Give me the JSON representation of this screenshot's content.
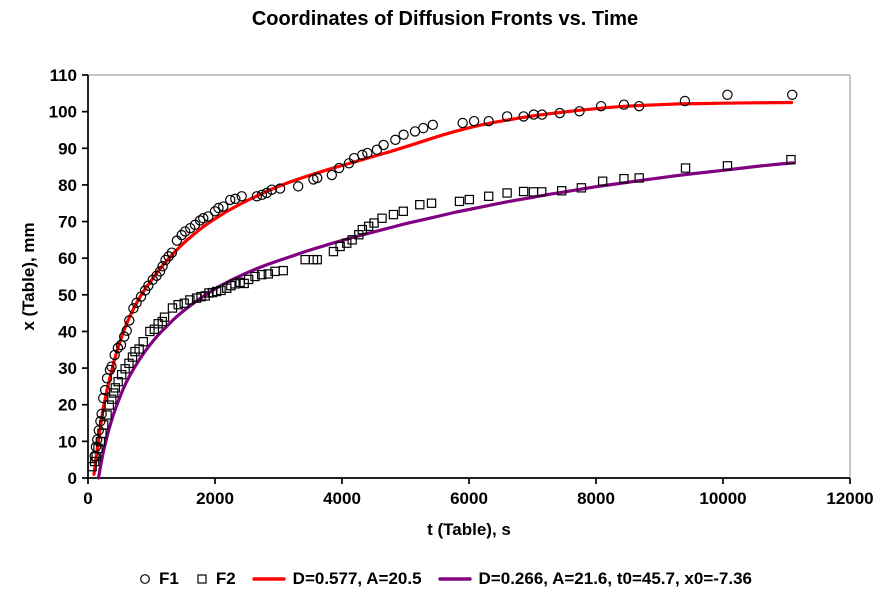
{
  "title": "Coordinates of Diffusion Fronts vs. Time",
  "colors": {
    "fit1_line": "#ff0000",
    "fit2_line": "#800080",
    "marker_stroke": "#000000",
    "axis": "#000000",
    "frame": "#8c8c8c",
    "background": "#ffffff"
  },
  "legend": {
    "items": [
      {
        "label": "F1",
        "marker": "circle-outline"
      },
      {
        "label": "F2",
        "marker": "square-outline"
      },
      {
        "label": "D=0.577, A=20.5",
        "marker": "red-line"
      },
      {
        "label": "D=0.266, A=21.6, t0=45.7, x0=-7.36",
        "marker": "purple-line"
      }
    ]
  },
  "chart_data": {
    "type": "scatter",
    "title": "Coordinates of Diffusion Fronts vs. Time",
    "xlabel": "t (Table), s",
    "ylabel": "x (Table), mm",
    "xlim": [
      0,
      12000
    ],
    "ylim": [
      0,
      110
    ],
    "x_ticks": [
      0,
      2000,
      4000,
      6000,
      8000,
      10000,
      12000
    ],
    "y_ticks": [
      0,
      10,
      20,
      30,
      40,
      50,
      60,
      70,
      80,
      90,
      100,
      110
    ],
    "grid": false,
    "legend_position": "bottom",
    "series": [
      {
        "name": "F1",
        "type": "scatter",
        "marker": "circle",
        "color": "#000000",
        "points": [
          [
            105,
            6
          ],
          [
            125,
            8.5
          ],
          [
            145,
            10.5
          ],
          [
            170,
            13
          ],
          [
            195,
            15.5
          ],
          [
            215,
            17.5
          ],
          [
            240,
            21.8
          ],
          [
            270,
            24
          ],
          [
            300,
            27.2
          ],
          [
            345,
            29.5
          ],
          [
            370,
            30.4
          ],
          [
            420,
            33.6
          ],
          [
            470,
            35.5
          ],
          [
            520,
            36.3
          ],
          [
            570,
            38.6
          ],
          [
            610,
            40.2
          ],
          [
            650,
            43
          ],
          [
            715,
            46.3
          ],
          [
            765,
            47.8
          ],
          [
            835,
            49.5
          ],
          [
            900,
            51.2
          ],
          [
            950,
            52.5
          ],
          [
            1020,
            54.1
          ],
          [
            1080,
            55.2
          ],
          [
            1135,
            56.4
          ],
          [
            1175,
            57.8
          ],
          [
            1220,
            59.5
          ],
          [
            1270,
            60.5
          ],
          [
            1320,
            61.5
          ],
          [
            1400,
            64.8
          ],
          [
            1475,
            66.3
          ],
          [
            1530,
            67.3
          ],
          [
            1610,
            68.2
          ],
          [
            1685,
            69.1
          ],
          [
            1765,
            70.3
          ],
          [
            1815,
            70.9
          ],
          [
            1895,
            71.4
          ],
          [
            2000,
            72.8
          ],
          [
            2055,
            73.7
          ],
          [
            2130,
            74.1
          ],
          [
            2240,
            75.9
          ],
          [
            2320,
            76.2
          ],
          [
            2420,
            76.9
          ],
          [
            2660,
            76.9
          ],
          [
            2740,
            77.3
          ],
          [
            2815,
            77.8
          ],
          [
            2895,
            78.7
          ],
          [
            3025,
            79
          ],
          [
            3310,
            79.6
          ],
          [
            3550,
            81.5
          ],
          [
            3610,
            81.9
          ],
          [
            3840,
            82.7
          ],
          [
            3955,
            84.6
          ],
          [
            4110,
            85.9
          ],
          [
            4190,
            87.3
          ],
          [
            4320,
            88.2
          ],
          [
            4400,
            88.7
          ],
          [
            4550,
            89.6
          ],
          [
            4655,
            90.9
          ],
          [
            4840,
            92.3
          ],
          [
            4970,
            93.7
          ],
          [
            5150,
            94.6
          ],
          [
            5280,
            95.5
          ],
          [
            5430,
            96.4
          ],
          [
            5900,
            96.9
          ],
          [
            6080,
            97.4
          ],
          [
            6310,
            97.4
          ],
          [
            6600,
            98.7
          ],
          [
            6860,
            98.7
          ],
          [
            7020,
            99.2
          ],
          [
            7150,
            99.2
          ],
          [
            7430,
            99.6
          ],
          [
            7740,
            100.1
          ],
          [
            8080,
            101.5
          ],
          [
            8440,
            101.9
          ],
          [
            8680,
            101.5
          ],
          [
            9400,
            102.9
          ],
          [
            10070,
            104.6
          ],
          [
            11090,
            104.6
          ]
        ]
      },
      {
        "name": "F2",
        "type": "scatter",
        "marker": "square",
        "color": "#000000",
        "points": [
          [
            65,
            3.1
          ],
          [
            105,
            4.5
          ],
          [
            128,
            5.8
          ],
          [
            157,
            8.1
          ],
          [
            195,
            9.9
          ],
          [
            220,
            12.2
          ],
          [
            247,
            14.5
          ],
          [
            300,
            17.2
          ],
          [
            335,
            19.9
          ],
          [
            375,
            21.5
          ],
          [
            405,
            23.2
          ],
          [
            430,
            24.6
          ],
          [
            475,
            26.3
          ],
          [
            530,
            28.2
          ],
          [
            585,
            29.8
          ],
          [
            645,
            31.3
          ],
          [
            700,
            33
          ],
          [
            740,
            34.5
          ],
          [
            805,
            35.2
          ],
          [
            870,
            37.2
          ],
          [
            975,
            40
          ],
          [
            1045,
            40.6
          ],
          [
            1105,
            42.1
          ],
          [
            1170,
            42.7
          ],
          [
            1205,
            43.9
          ],
          [
            1330,
            46.4
          ],
          [
            1420,
            47.3
          ],
          [
            1515,
            47.7
          ],
          [
            1605,
            48.6
          ],
          [
            1710,
            49.1
          ],
          [
            1780,
            49.5
          ],
          [
            1845,
            49.7
          ],
          [
            1905,
            50.5
          ],
          [
            1960,
            50.6
          ],
          [
            2025,
            50.9
          ],
          [
            2095,
            51.2
          ],
          [
            2185,
            51.8
          ],
          [
            2250,
            52.5
          ],
          [
            2315,
            53
          ],
          [
            2395,
            53.4
          ],
          [
            2460,
            53.1
          ],
          [
            2530,
            54.2
          ],
          [
            2630,
            55
          ],
          [
            2735,
            55.5
          ],
          [
            2840,
            55.7
          ],
          [
            2945,
            56.4
          ],
          [
            3075,
            56.6
          ],
          [
            3420,
            59.6
          ],
          [
            3550,
            59.6
          ],
          [
            3610,
            59.6
          ],
          [
            3865,
            61.8
          ],
          [
            3970,
            63.2
          ],
          [
            4075,
            64.1
          ],
          [
            4160,
            65
          ],
          [
            4265,
            66.4
          ],
          [
            4320,
            67.8
          ],
          [
            4420,
            68.7
          ],
          [
            4505,
            69.6
          ],
          [
            4630,
            70.9
          ],
          [
            4810,
            71.9
          ],
          [
            4965,
            72.8
          ],
          [
            5225,
            74.6
          ],
          [
            5410,
            75
          ],
          [
            5850,
            75.5
          ],
          [
            6005,
            76
          ],
          [
            6310,
            76.9
          ],
          [
            6600,
            77.8
          ],
          [
            6860,
            78.2
          ],
          [
            7015,
            78.1
          ],
          [
            7145,
            78.1
          ],
          [
            7460,
            78.4
          ],
          [
            7770,
            79.2
          ],
          [
            8105,
            81
          ],
          [
            8440,
            81.7
          ],
          [
            8680,
            81.9
          ],
          [
            9410,
            84.6
          ],
          [
            10070,
            85.2
          ],
          [
            11070,
            86.9
          ]
        ]
      },
      {
        "name": "D=0.577, A=20.5",
        "type": "line",
        "color": "#ff0000",
        "points": [
          [
            95,
            1
          ],
          [
            130,
            6
          ],
          [
            180,
            12
          ],
          [
            240,
            19
          ],
          [
            300,
            24
          ],
          [
            360,
            28.5
          ],
          [
            420,
            32.5
          ],
          [
            480,
            36
          ],
          [
            540,
            39
          ],
          [
            600,
            41.8
          ],
          [
            660,
            44.2
          ],
          [
            720,
            46.3
          ],
          [
            780,
            48.2
          ],
          [
            840,
            50
          ],
          [
            910,
            51.9
          ],
          [
            1000,
            54
          ],
          [
            1080,
            55.9
          ],
          [
            1160,
            57.7
          ],
          [
            1250,
            59.5
          ],
          [
            1350,
            61.4
          ],
          [
            1450,
            63.2
          ],
          [
            1550,
            64.8
          ],
          [
            1650,
            66.3
          ],
          [
            1750,
            67.7
          ],
          [
            1850,
            69
          ],
          [
            1950,
            70.2
          ],
          [
            2050,
            71.3
          ],
          [
            2150,
            72.4
          ],
          [
            2250,
            73.4
          ],
          [
            2400,
            74.8
          ],
          [
            2550,
            76.1
          ],
          [
            2700,
            77.3
          ],
          [
            2850,
            78.5
          ],
          [
            3000,
            79.6
          ],
          [
            3150,
            80.6
          ],
          [
            3300,
            81.5
          ],
          [
            3450,
            82.4
          ],
          [
            3600,
            83.2
          ],
          [
            3800,
            84.3
          ],
          [
            4000,
            85.3
          ],
          [
            4200,
            86.3
          ],
          [
            4400,
            87.3
          ],
          [
            4600,
            88.3
          ],
          [
            4800,
            89.3
          ],
          [
            5000,
            90.4
          ],
          [
            5200,
            91.5
          ],
          [
            5400,
            92.6
          ],
          [
            5600,
            93.7
          ],
          [
            5800,
            94.7
          ],
          [
            6000,
            95.6
          ],
          [
            6200,
            96.4
          ],
          [
            6400,
            97.1
          ],
          [
            6600,
            97.7
          ],
          [
            6800,
            98.3
          ],
          [
            7000,
            98.8
          ],
          [
            7250,
            99.4
          ],
          [
            7500,
            99.9
          ],
          [
            7750,
            100.4
          ],
          [
            8000,
            100.8
          ],
          [
            8250,
            101.2
          ],
          [
            8500,
            101.5
          ],
          [
            8750,
            101.7
          ],
          [
            9000,
            101.9
          ],
          [
            9300,
            102.1
          ],
          [
            9600,
            102.2
          ],
          [
            10000,
            102.3
          ],
          [
            10500,
            102.4
          ],
          [
            11080,
            102.5
          ]
        ]
      },
      {
        "name": "D=0.266, A=21.6, t0=45.7, x0=-7.36",
        "type": "line",
        "color": "#800080",
        "points": [
          [
            165,
            0
          ],
          [
            200,
            3.5
          ],
          [
            240,
            7
          ],
          [
            280,
            10
          ],
          [
            320,
            12.7
          ],
          [
            360,
            15.1
          ],
          [
            400,
            17.3
          ],
          [
            450,
            19.8
          ],
          [
            500,
            22
          ],
          [
            550,
            24.1
          ],
          [
            600,
            26
          ],
          [
            660,
            28
          ],
          [
            720,
            29.8
          ],
          [
            780,
            31.5
          ],
          [
            840,
            33.1
          ],
          [
            900,
            34.6
          ],
          [
            960,
            36
          ],
          [
            1030,
            37.5
          ],
          [
            1100,
            38.9
          ],
          [
            1170,
            40.2
          ],
          [
            1250,
            41.6
          ],
          [
            1330,
            43
          ],
          [
            1420,
            44.4
          ],
          [
            1510,
            45.7
          ],
          [
            1600,
            46.9
          ],
          [
            1700,
            48.2
          ],
          [
            1800,
            49.4
          ],
          [
            1900,
            50.5
          ],
          [
            2000,
            51.6
          ],
          [
            2100,
            52.6
          ],
          [
            2200,
            53.5
          ],
          [
            2300,
            54.4
          ],
          [
            2400,
            55.2
          ],
          [
            2500,
            56
          ],
          [
            2650,
            57.1
          ],
          [
            2800,
            58.1
          ],
          [
            2950,
            59
          ],
          [
            3100,
            59.9
          ],
          [
            3250,
            60.8
          ],
          [
            3400,
            61.7
          ],
          [
            3550,
            62.5
          ],
          [
            3700,
            63.3
          ],
          [
            3850,
            64.1
          ],
          [
            4000,
            64.8
          ],
          [
            4200,
            65.8
          ],
          [
            4400,
            66.7
          ],
          [
            4600,
            67.6
          ],
          [
            4800,
            68.5
          ],
          [
            5000,
            69.4
          ],
          [
            5200,
            70.2
          ],
          [
            5400,
            71
          ],
          [
            5600,
            71.8
          ],
          [
            5800,
            72.6
          ],
          [
            6000,
            73.3
          ],
          [
            6200,
            74
          ],
          [
            6400,
            74.7
          ],
          [
            6600,
            75.4
          ],
          [
            6800,
            76
          ],
          [
            7000,
            76.6
          ],
          [
            7250,
            77.4
          ],
          [
            7500,
            78.1
          ],
          [
            7750,
            78.8
          ],
          [
            8000,
            79.5
          ],
          [
            8250,
            80.1
          ],
          [
            8500,
            80.7
          ],
          [
            8750,
            81.3
          ],
          [
            9000,
            81.9
          ],
          [
            9250,
            82.5
          ],
          [
            9500,
            83
          ],
          [
            9750,
            83.5
          ],
          [
            10000,
            84
          ],
          [
            10300,
            84.6
          ],
          [
            10600,
            85.2
          ],
          [
            10900,
            85.7
          ],
          [
            11100,
            86
          ]
        ]
      }
    ]
  }
}
